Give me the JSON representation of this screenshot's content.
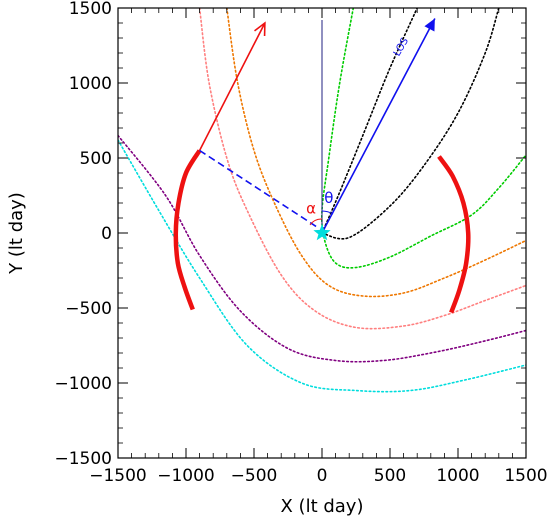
{
  "chart_data": {
    "type": "line",
    "xlabel": "X (lt day)",
    "ylabel": "Y (lt day)",
    "xlim": [
      -1500,
      1500
    ],
    "ylim": [
      -1500,
      1500
    ],
    "xticks": [
      -1500,
      -1000,
      -500,
      0,
      500,
      1000,
      1500
    ],
    "yticks": [
      -1500,
      -1000,
      -500,
      0,
      500,
      1000,
      1500
    ],
    "grid": false,
    "colors": {
      "green": "#00cc00",
      "orange": "#ee7700",
      "salmon": "#ff7f7f",
      "purple": "#800080",
      "cyan": "#00dddd",
      "black": "#000000",
      "red": "#ee1111",
      "blue": "#1010ee",
      "navy": "#202080"
    },
    "curves": [
      {
        "color": "green",
        "points": [
          [
            230,
            1500
          ],
          [
            130,
            1000
          ],
          [
            50,
            500
          ],
          [
            0,
            150
          ],
          [
            20,
            -50
          ],
          [
            100,
            -200
          ],
          [
            250,
            -230
          ],
          [
            500,
            -160
          ],
          [
            800,
            -20
          ],
          [
            1100,
            120
          ],
          [
            1300,
            300
          ],
          [
            1500,
            520
          ]
        ]
      },
      {
        "color": "orange",
        "points": [
          [
            -700,
            1500
          ],
          [
            -620,
            1000
          ],
          [
            -500,
            550
          ],
          [
            -350,
            200
          ],
          [
            -150,
            -150
          ],
          [
            50,
            -350
          ],
          [
            300,
            -420
          ],
          [
            600,
            -400
          ],
          [
            900,
            -300
          ],
          [
            1200,
            -180
          ],
          [
            1500,
            -50
          ]
        ]
      },
      {
        "color": "salmon",
        "points": [
          [
            -900,
            1500
          ],
          [
            -830,
            1000
          ],
          [
            -700,
            500
          ],
          [
            -550,
            150
          ],
          [
            -300,
            -280
          ],
          [
            -50,
            -520
          ],
          [
            250,
            -630
          ],
          [
            600,
            -620
          ],
          [
            900,
            -550
          ],
          [
            1200,
            -450
          ],
          [
            1500,
            -350
          ]
        ]
      },
      {
        "color": "purple",
        "points": [
          [
            -1500,
            650
          ],
          [
            -1150,
            250
          ],
          [
            -900,
            -150
          ],
          [
            -600,
            -520
          ],
          [
            -250,
            -770
          ],
          [
            100,
            -850
          ],
          [
            450,
            -850
          ],
          [
            800,
            -800
          ],
          [
            1150,
            -730
          ],
          [
            1500,
            -650
          ]
        ]
      },
      {
        "color": "cyan",
        "points": [
          [
            -1500,
            620
          ],
          [
            -1200,
            150
          ],
          [
            -900,
            -300
          ],
          [
            -550,
            -750
          ],
          [
            -150,
            -1000
          ],
          [
            250,
            -1050
          ],
          [
            650,
            -1050
          ],
          [
            1050,
            -980
          ],
          [
            1500,
            -880
          ]
        ]
      },
      {
        "color": "black",
        "points": [
          [
            0,
            0
          ],
          [
            120,
            250
          ],
          [
            300,
            650
          ],
          [
            500,
            1100
          ],
          [
            700,
            1500
          ]
        ]
      },
      {
        "color": "black",
        "points": [
          [
            0,
            0
          ],
          [
            200,
            -30
          ],
          [
            500,
            180
          ],
          [
            750,
            450
          ],
          [
            1000,
            800
          ],
          [
            1200,
            1200
          ],
          [
            1300,
            1500
          ]
        ]
      }
    ],
    "arcs": [
      {
        "color": "red",
        "points": [
          [
            -900,
            550
          ],
          [
            -1000,
            400
          ],
          [
            -1055,
            200
          ],
          [
            -1075,
            0
          ],
          [
            -1060,
            -200
          ],
          [
            -1010,
            -360
          ],
          [
            -950,
            -510
          ]
        ]
      },
      {
        "color": "red",
        "points": [
          [
            860,
            510
          ],
          [
            960,
            380
          ],
          [
            1040,
            200
          ],
          [
            1075,
            0
          ],
          [
            1060,
            -200
          ],
          [
            1010,
            -380
          ],
          [
            950,
            -530
          ]
        ]
      }
    ],
    "vectors": [
      {
        "color": "red",
        "from": [
          -900,
          550
        ],
        "to": [
          -420,
          1400
        ],
        "head": "open"
      },
      {
        "color": "blue",
        "from": [
          0,
          0
        ],
        "to": [
          830,
          1430
        ],
        "head": "filled"
      },
      {
        "color": "navy",
        "from": [
          0,
          0
        ],
        "to": [
          0,
          1420
        ],
        "head": "none"
      },
      {
        "color": "blue",
        "from": [
          -900,
          550
        ],
        "to": [
          -20,
          30
        ],
        "head": "none",
        "dashed": true
      }
    ],
    "marker": {
      "color": "cyan",
      "at": [
        0,
        0
      ],
      "shape": "star"
    },
    "annotations": [
      {
        "text": "LOS",
        "at": [
          600,
          1230
        ],
        "color": "blue",
        "rotate": -60
      },
      {
        "text": "θ",
        "at": [
          50,
          200
        ],
        "color": "blue"
      },
      {
        "text": "α",
        "at": [
          -80,
          130
        ],
        "color": "red"
      }
    ]
  }
}
